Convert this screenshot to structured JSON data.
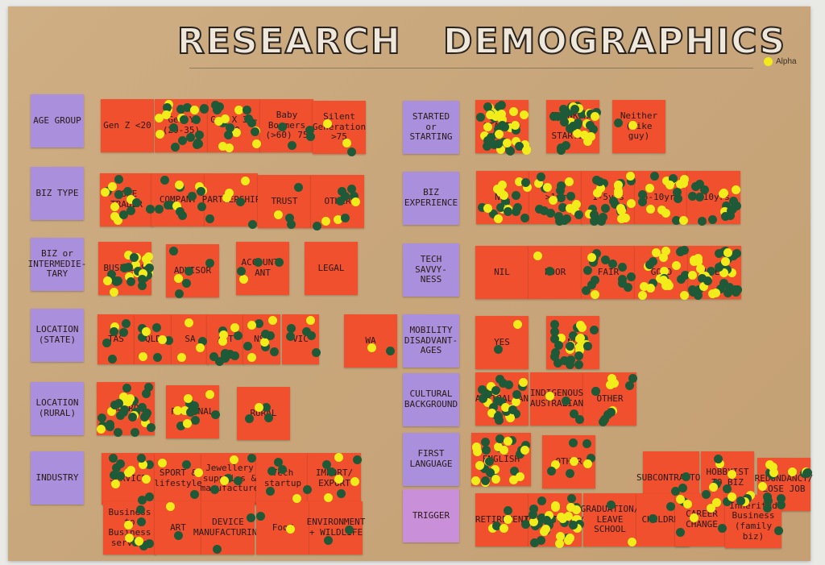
{
  "title_left": "RESEARCH",
  "title_right": "DEMOGRAPHICS",
  "legend_label": "Alpha",
  "colors": {
    "paper": "#c9a77c",
    "category_note": "#a98fdc",
    "option_note": "#f0502e",
    "dot_green": "#1f5a38",
    "dot_yellow": "#f2ec1a"
  },
  "categories": [
    "AGE GROUP",
    "BIZ TYPE",
    "BIZ or INTERMEDIE-TARY",
    "LOCATION (STATE)",
    "LOCATION (RURAL)",
    "INDUSTRY",
    "STARTED or STARTING",
    "BIZ EXPERIENCE",
    "TECH SAVVY-NESS",
    "MOBILITY DISADVANT-AGES",
    "CULTURAL BACKGROUND",
    "FIRST LANGUAGE",
    "TRIGGER"
  ],
  "options": [
    "Gen Z <20",
    "Gen Y (20-35)",
    "Gen X 35-60",
    "Baby Boomers (>60) 75",
    "Silent Generation >75",
    "SOLE TRADER",
    "COMPANY",
    "PARTNERSHIP",
    "TRUST",
    "OTHER",
    "BUSINESS",
    "ADVISOR",
    "ACCOUNT-ANT",
    "LEGAL",
    "TAS",
    "QLD",
    "SA",
    "ACT",
    "NSW",
    "VIC",
    "WA",
    "METRO",
    "REGIONAL",
    "RURAL",
    "SERVICE",
    "SPORT & lifestyle",
    "Jewellery supplies & manufacture",
    "Tech startup",
    "IMPORT/ EXPORT",
    "Business to Business service",
    "ART",
    "DEVICE MANUFACTURING",
    "Food",
    "ENVIRONMENT + WILDLIFE",
    "STARTED",
    "THINKING OF STARTING",
    "Neither (bike guy)",
    "Nil",
    ">1yr",
    "1-5yrs",
    "5-10yrs",
    ">10yrs",
    "NIL",
    "POOR",
    "FAIR",
    "GOOD",
    "FLUENT",
    "YES",
    "NO",
    "AUSTRALIAN",
    "INDIGENOUS AUSTRALIAN",
    "OTHER",
    "ENGLISH",
    "OTHER",
    "SUBCONTRACTOR",
    "HOBBYIST TO BIZ",
    "REDUNDANCY/ LOSE JOB",
    "RETIREMENT",
    "OPPORTUNITY",
    "GRADUATION/ LEAVE SCHOOL",
    "CHILDREN",
    "CAREER CHANGE",
    "Inherited Business (family biz)"
  ]
}
